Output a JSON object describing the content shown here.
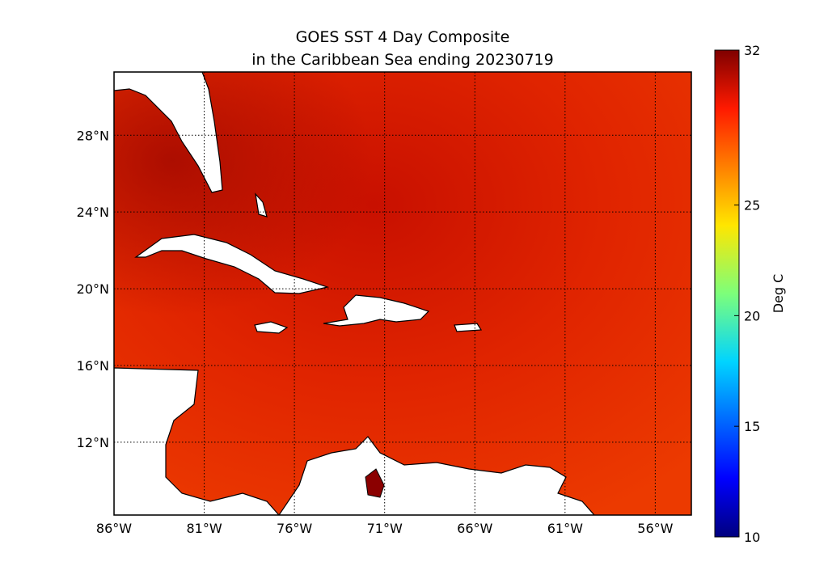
{
  "title": [
    "GOES SST 4 Day Composite",
    "in the Caribbean Sea ending 20230719"
  ],
  "map": {
    "xlim": [
      -86,
      -54
    ],
    "ylim": [
      8.2,
      31.3
    ],
    "xticks": [
      {
        "value": -86,
        "label": "86°W"
      },
      {
        "value": -81,
        "label": "81°W"
      },
      {
        "value": -76,
        "label": "76°W"
      },
      {
        "value": -71,
        "label": "71°W"
      },
      {
        "value": -66,
        "label": "66°W"
      },
      {
        "value": -61,
        "label": "61°W"
      },
      {
        "value": -56,
        "label": "56°W"
      }
    ],
    "yticks": [
      {
        "value": 12,
        "label": "12°N"
      },
      {
        "value": 16,
        "label": "16°N"
      },
      {
        "value": 20,
        "label": "20°N"
      },
      {
        "value": 24,
        "label": "24°N"
      },
      {
        "value": 28,
        "label": "28°N"
      }
    ]
  },
  "colorbar": {
    "label": "Deg C",
    "range": [
      10,
      32
    ],
    "ticks": [
      10,
      15,
      20,
      25,
      32
    ]
  }
}
